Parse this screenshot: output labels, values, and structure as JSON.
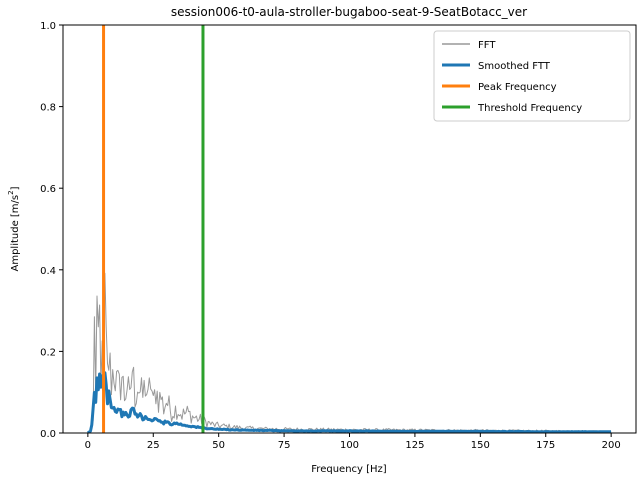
{
  "chart_data": {
    "type": "line",
    "title": "session006-t0-aula-stroller-bugaboo-seat-9-SeatBotacc_ver",
    "xlabel": "Frequency [Hz]",
    "ylabel_prefix": "Amplitude [m/s",
    "ylabel_sup": "2",
    "ylabel_suffix": "]",
    "xlim": [
      -9.5,
      209.5
    ],
    "ylim": [
      0,
      1
    ],
    "x_ticks": [
      0,
      25,
      50,
      75,
      100,
      125,
      150,
      175,
      200
    ],
    "x_tick_labels": [
      "0",
      "25",
      "50",
      "75",
      "100",
      "125",
      "150",
      "175",
      "200"
    ],
    "y_ticks": [
      0.0,
      0.2,
      0.4,
      0.6,
      0.8,
      1.0
    ],
    "y_tick_labels": [
      "0.0",
      "0.2",
      "0.4",
      "0.6",
      "0.8",
      "1.0"
    ],
    "grid": false,
    "legend_position": "top-right",
    "series": [
      {
        "name": "FFT",
        "color": "#999999",
        "style": "noisy",
        "x": [
          0,
          1,
          2,
          2.5,
          3,
          3.5,
          4,
          4.5,
          5,
          5.5,
          6,
          6.5,
          7,
          7.5,
          8,
          9,
          10,
          11,
          12,
          13,
          14,
          15,
          16,
          17,
          18,
          19,
          20,
          21,
          22,
          23,
          24,
          25,
          26,
          27,
          28,
          29,
          30,
          32,
          34,
          36,
          38,
          40,
          42,
          44,
          46,
          48,
          50,
          55,
          60,
          70,
          80,
          100,
          125,
          150,
          175,
          200
        ],
        "y": [
          0,
          0.005,
          0.03,
          0.25,
          0.12,
          0.3,
          0.18,
          0.27,
          0.1,
          0.32,
          0.15,
          0.33,
          0.2,
          0.14,
          0.18,
          0.13,
          0.16,
          0.12,
          0.11,
          0.14,
          0.09,
          0.12,
          0.08,
          0.16,
          0.09,
          0.12,
          0.1,
          0.09,
          0.12,
          0.08,
          0.13,
          0.07,
          0.11,
          0.08,
          0.09,
          0.06,
          0.08,
          0.05,
          0.06,
          0.045,
          0.05,
          0.04,
          0.035,
          0.03,
          0.025,
          0.02,
          0.018,
          0.015,
          0.012,
          0.01,
          0.009,
          0.008,
          0.007,
          0.006,
          0.005,
          0.004
        ]
      },
      {
        "name": "Smoothed FTT",
        "color": "#1f77b4",
        "style": "smooth",
        "x": [
          0,
          1,
          1.5,
          2,
          2.5,
          3,
          3.5,
          4,
          4.5,
          5,
          5.5,
          6,
          6.5,
          7,
          7.5,
          8,
          9,
          10,
          11,
          12,
          13,
          14,
          15,
          16,
          17,
          18,
          19,
          20,
          21,
          22,
          23,
          24,
          25,
          26,
          27,
          28,
          29,
          30,
          32,
          34,
          36,
          38,
          40,
          42,
          44,
          46,
          48,
          50,
          55,
          60,
          70,
          80,
          100,
          125,
          150,
          175,
          200
        ],
        "y": [
          0,
          0.005,
          0.02,
          0.06,
          0.09,
          0.07,
          0.13,
          0.1,
          0.15,
          0.11,
          0.14,
          0.1,
          0.16,
          0.12,
          0.08,
          0.1,
          0.07,
          0.06,
          0.055,
          0.06,
          0.045,
          0.05,
          0.04,
          0.045,
          0.06,
          0.05,
          0.04,
          0.045,
          0.035,
          0.04,
          0.03,
          0.035,
          0.03,
          0.035,
          0.028,
          0.03,
          0.025,
          0.028,
          0.022,
          0.024,
          0.02,
          0.018,
          0.016,
          0.014,
          0.012,
          0.011,
          0.01,
          0.009,
          0.008,
          0.007,
          0.006,
          0.005,
          0.005,
          0.004,
          0.004,
          0.003,
          0.003
        ]
      },
      {
        "name": "Peak Frequency",
        "color": "#ff7f0e",
        "style": "vline",
        "x_value": 6
      },
      {
        "name": "Threshold Frequency",
        "color": "#2ca02c",
        "style": "vline",
        "x_value": 44
      }
    ]
  }
}
